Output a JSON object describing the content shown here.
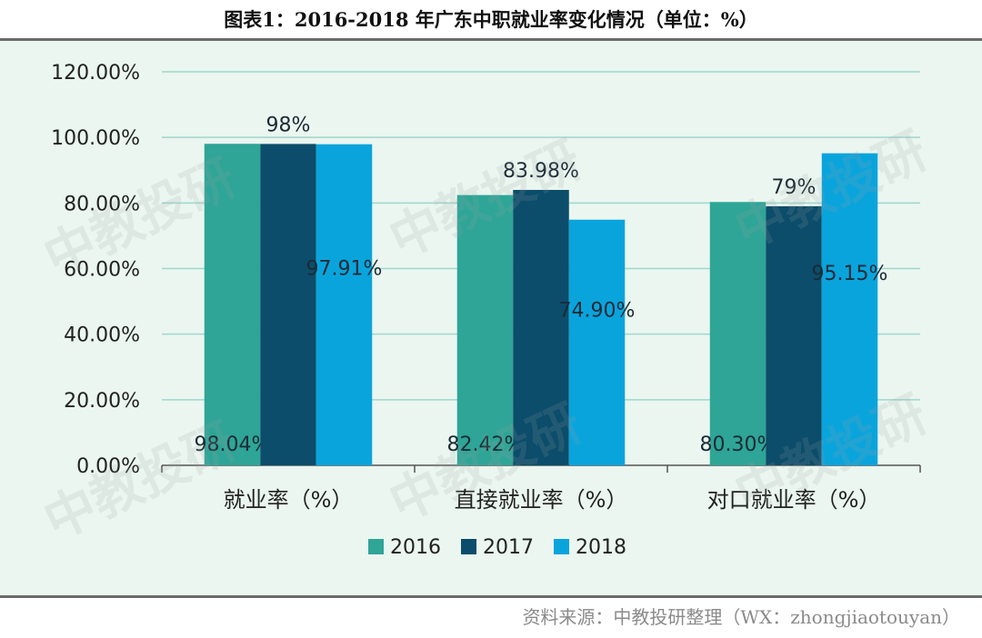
{
  "page": {
    "title": "图表1：2016-2018 年广东中职就业率变化情况（单位：%）",
    "source": "资料来源：中教投研整理（WX：zhongjiaotouyan）",
    "watermark": "中教投研"
  },
  "colors": {
    "2016": "#2ea597",
    "2017": "#0b4d6a",
    "2018": "#0aa4dc",
    "gridline": "#9fd6cf",
    "panel_bg": "#eaf6ef"
  },
  "chart_data": {
    "type": "bar",
    "title": "",
    "xlabel": "",
    "ylabel": "",
    "ylim": [
      0,
      120
    ],
    "yticks": [
      0,
      20,
      40,
      60,
      80,
      100,
      120
    ],
    "ytick_labels": [
      "0.00%",
      "20.00%",
      "40.00%",
      "60.00%",
      "80.00%",
      "100.00%",
      "120.00%"
    ],
    "grid": true,
    "legend_position": "bottom",
    "categories": [
      "就业率（%）",
      "直接就业率（%）",
      "对口就业率（%）"
    ],
    "series": [
      {
        "name": "2016",
        "values": [
          98.04,
          82.42,
          80.3
        ],
        "labels": [
          "98.04%",
          "82.42%",
          "80.30%"
        ]
      },
      {
        "name": "2017",
        "values": [
          98,
          83.98,
          79
        ],
        "labels": [
          "98%",
          "83.98%",
          "79%"
        ]
      },
      {
        "name": "2018",
        "values": [
          97.91,
          74.9,
          95.15
        ],
        "labels": [
          "97.91%",
          "74.90%",
          "95.15%"
        ]
      }
    ]
  }
}
